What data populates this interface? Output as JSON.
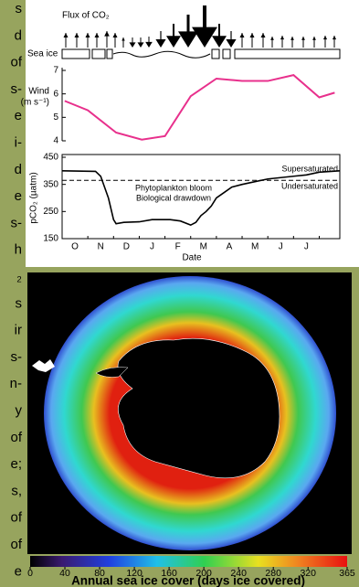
{
  "left_text": [
    "s",
    "d",
    "of",
    "s-",
    "e",
    "i-",
    "d",
    "e",
    "s-",
    "h",
    "₂",
    "s",
    "ir",
    "s-",
    "n-",
    "y",
    "of",
    "e;",
    "s,",
    "of",
    "of",
    "e"
  ],
  "flux_label": "Flux of CO₂",
  "sea_ice_label": "Sea ice",
  "chart_data": [
    {
      "type": "line",
      "ylabel": [
        "Wind",
        "(m s⁻¹)"
      ],
      "x": [
        0.1,
        1.0,
        2.1,
        3.1,
        4.0,
        5.0,
        6.0,
        7.0,
        8.0,
        9.0,
        10.0,
        10.6
      ],
      "series": [
        {
          "name": "Wind",
          "color": "#e8308c",
          "values": [
            5.7,
            5.3,
            4.35,
            4.05,
            4.2,
            5.9,
            6.65,
            6.55,
            6.55,
            6.8,
            5.85,
            6.05
          ]
        }
      ],
      "xlim": [
        0,
        10.8
      ],
      "ylim": [
        4,
        7
      ],
      "yticks": [
        4,
        5,
        6,
        7
      ]
    },
    {
      "type": "line",
      "ylabel": "pCO₂ (µatm)",
      "xlabel": "Date",
      "categories": [
        "O",
        "N",
        "D",
        "J",
        "F",
        "M",
        "A",
        "M",
        "J",
        "J"
      ],
      "x": [
        0,
        1.3,
        1.5,
        1.8,
        2.0,
        2.1,
        2.4,
        3.0,
        3.5,
        4.2,
        4.6,
        5.0,
        5.2,
        5.4,
        5.6,
        5.8,
        6.0,
        6.3,
        6.6,
        7.0,
        7.5,
        8.0,
        8.5,
        9.0,
        9.5,
        10.0,
        10.8
      ],
      "series": [
        {
          "name": "pCO₂",
          "color": "#000000",
          "values": [
            400,
            398,
            380,
            300,
            220,
            205,
            210,
            212,
            220,
            220,
            215,
            200,
            210,
            235,
            250,
            270,
            300,
            320,
            340,
            350,
            360,
            370,
            375,
            380,
            385,
            395,
            400
          ]
        }
      ],
      "reference_line": 365,
      "annotations": [
        "Supersaturated",
        "Undersaturated",
        "Phytoplankton bloom",
        "Biological drawdown"
      ],
      "xlim": [
        0,
        10.8
      ],
      "ylim": [
        150,
        450
      ],
      "yticks": [
        150,
        250,
        350,
        450
      ]
    }
  ],
  "colorbar": {
    "ticks": [
      0,
      40,
      80,
      120,
      160,
      200,
      240,
      280,
      320,
      365
    ],
    "range": [
      0,
      365
    ],
    "label": "Annual sea ice cover (days ice covered)"
  }
}
